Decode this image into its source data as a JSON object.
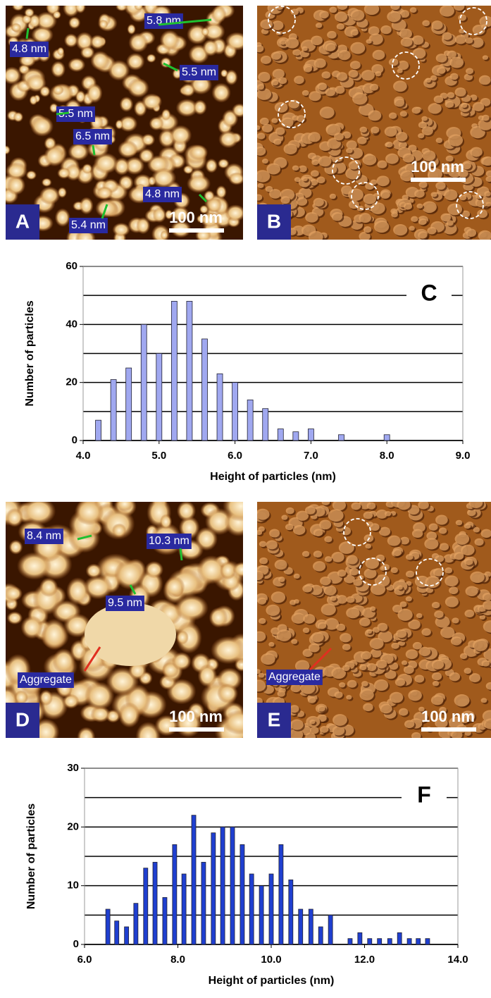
{
  "chart_data": [
    {
      "type": "bar",
      "panel_label": "C",
      "xlabel": "Height of particles (nm)",
      "ylabel": "Number of particles",
      "x": [
        4.2,
        4.4,
        4.6,
        4.8,
        5.0,
        5.2,
        5.4,
        5.6,
        5.8,
        6.0,
        6.2,
        6.4,
        6.6,
        6.8,
        7.0,
        7.4,
        8.0
      ],
      "values": [
        7,
        21,
        25,
        40,
        30,
        48,
        48,
        35,
        23,
        20,
        14,
        11,
        4,
        3,
        4,
        2,
        2
      ],
      "color": "#a0a8f0",
      "xlim": [
        4.0,
        9.0
      ],
      "xticks": [
        {
          "value": 4,
          "label": "4.0"
        },
        {
          "value": 5,
          "label": "5.0"
        },
        {
          "value": 6,
          "label": "6.0"
        },
        {
          "value": 7,
          "label": "7.0"
        },
        {
          "value": 8,
          "label": "8.0"
        },
        {
          "value": 9,
          "label": "9.0"
        }
      ],
      "ylim": [
        0,
        60
      ],
      "yticks": [
        0,
        20,
        40,
        60
      ],
      "minor_yticks": [
        10,
        30,
        50
      ],
      "grid": true
    },
    {
      "type": "bar",
      "panel_label": "F",
      "xlabel": "Height of particles (nm)",
      "ylabel": "Number of particles",
      "x": [
        6.5,
        6.69,
        6.9,
        7.1,
        7.31,
        7.51,
        7.72,
        7.93,
        8.13,
        8.34,
        8.55,
        8.76,
        8.96,
        9.17,
        9.38,
        9.58,
        9.79,
        10.0,
        10.21,
        10.42,
        10.63,
        10.85,
        11.06,
        11.27,
        11.69,
        11.9,
        12.11,
        12.32,
        12.54,
        12.75,
        12.96,
        13.15,
        13.35
      ],
      "values": [
        6,
        4,
        3,
        7,
        13,
        14,
        8,
        17,
        12,
        22,
        14,
        19,
        20,
        20,
        17,
        12,
        10,
        12,
        17,
        11,
        6,
        6,
        3,
        5,
        1,
        2,
        1,
        1,
        1,
        2,
        1,
        1,
        1
      ],
      "color": "#1f3fd0",
      "xlim": [
        6.0,
        14.0
      ],
      "xticks": [
        {
          "value": 6,
          "label": "6.0"
        },
        {
          "value": 8,
          "label": "8.0"
        },
        {
          "value": 10,
          "label": "10.0"
        },
        {
          "value": 12,
          "label": "12.0"
        },
        {
          "value": 14,
          "label": "14.0"
        }
      ],
      "ylim": [
        0,
        30
      ],
      "yticks": [
        0,
        10,
        20,
        30
      ],
      "minor_yticks": [
        5,
        15,
        25
      ],
      "grid": true
    }
  ],
  "panels": [
    {
      "letter": "A",
      "scale_bar": "100 nm",
      "annotations": [
        "5.8 nm",
        "4.8 nm",
        "5.5 nm",
        "5.5 nm",
        "6.5 nm",
        "4.8 nm",
        "5.4 nm"
      ]
    },
    {
      "letter": "B",
      "scale_bar": "100 nm",
      "annotations": []
    },
    {
      "letter": "D",
      "scale_bar": "100 nm",
      "annotations": [
        "8.4 nm",
        "10.3 nm",
        "9.5 nm",
        "Aggregate"
      ]
    },
    {
      "letter": "E",
      "scale_bar": "100 nm",
      "annotations": [
        "Aggregate"
      ]
    }
  ]
}
